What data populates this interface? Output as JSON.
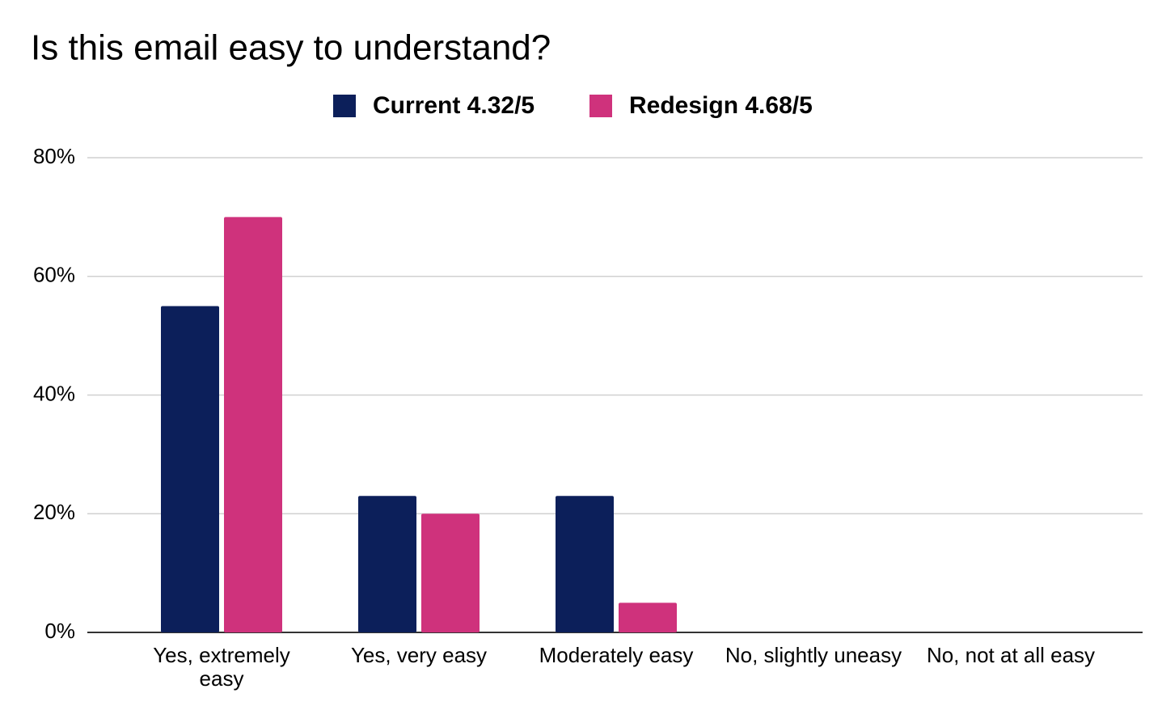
{
  "chart_data": {
    "type": "bar",
    "title": "Is this email easy to understand?",
    "categories": [
      "Yes, extremely easy",
      "Yes, very easy",
      "Moderately easy",
      "No, slightly uneasy",
      "No, not at all easy"
    ],
    "series": [
      {
        "name": "Current 4.32/5",
        "color": "#0c1f5a",
        "values": [
          55,
          23,
          23,
          0,
          0
        ]
      },
      {
        "name": "Redesign 4.68/5",
        "color": "#cf327c",
        "values": [
          70,
          20,
          5,
          0,
          0
        ]
      }
    ],
    "ylim": [
      0,
      80
    ],
    "yticks": [
      {
        "value": 0,
        "label": "0%"
      },
      {
        "value": 20,
        "label": "20%"
      },
      {
        "value": 40,
        "label": "40%"
      },
      {
        "value": 60,
        "label": "60%"
      },
      {
        "value": 80,
        "label": "80%"
      }
    ],
    "grid": true,
    "legend": "top"
  }
}
